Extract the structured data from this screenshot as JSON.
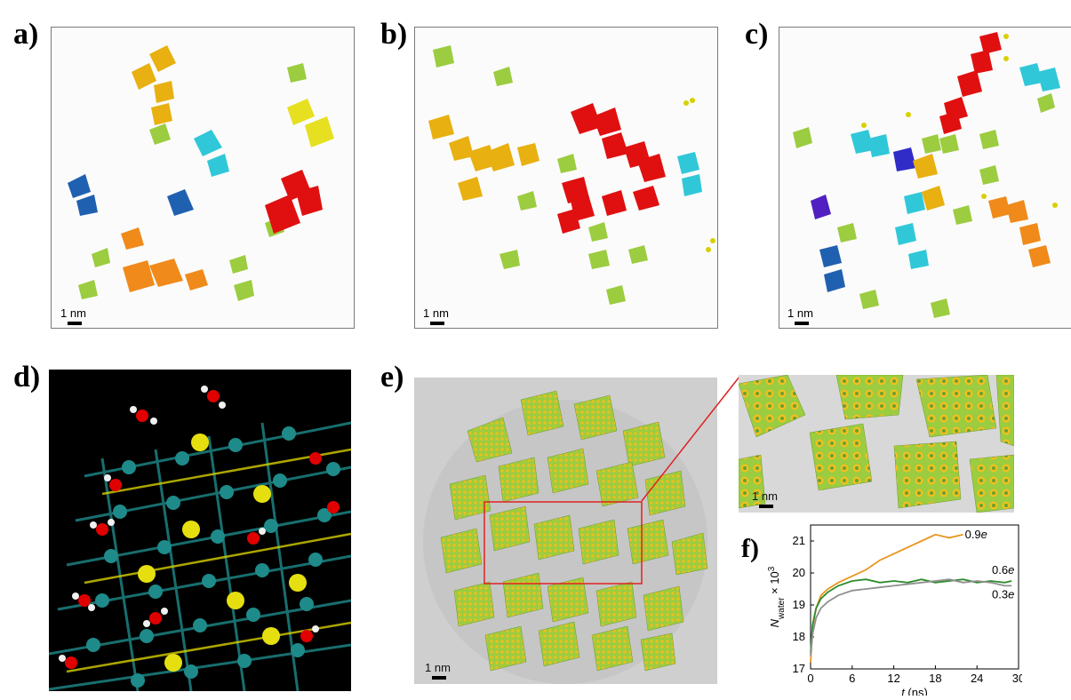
{
  "figure": {
    "panels": {
      "a": {
        "label": "a)",
        "scale_bar": "1 nm"
      },
      "b": {
        "label": "b)",
        "scale_bar": "1 nm"
      },
      "c": {
        "label": "c)",
        "scale_bar": "1 nm"
      },
      "d": {
        "label": "d)"
      },
      "e": {
        "label": "e)",
        "scale_bar_main": "1 nm",
        "scale_bar_zoom": "1 nm"
      },
      "f": {
        "label": "f)"
      }
    },
    "colors": {
      "red": "#e01010",
      "orange": "#f08a1a",
      "gold": "#e8b010",
      "yellow": "#e6e020",
      "green": "#9ccc40",
      "cyan": "#30c8d8",
      "blue": "#2060b0",
      "purple": "#5020c0",
      "teal": "#1f8a8a",
      "sulfur": "#d8d000",
      "oxygen": "#e00000",
      "hydrogen": "#f0f0f0"
    }
  },
  "chart_data": {
    "type": "line",
    "xlabel": "t (ns)",
    "ylabel": "N_water × 10^3",
    "xlim": [
      0,
      30
    ],
    "ylim": [
      17,
      21.5
    ],
    "xticks": [
      "0",
      "6",
      "12",
      "18",
      "24",
      "30"
    ],
    "yticks": [
      "17",
      "18",
      "19",
      "20",
      "21"
    ],
    "series": [
      {
        "name": "0.9e",
        "color": "#e8961e",
        "x": [
          0,
          0.3,
          0.8,
          1.5,
          2.5,
          4,
          6,
          8,
          10,
          12,
          14,
          16,
          18,
          20,
          22
        ],
        "y": [
          17.2,
          18.3,
          18.9,
          19.3,
          19.5,
          19.7,
          19.9,
          20.1,
          20.4,
          20.6,
          20.8,
          21.0,
          21.2,
          21.1,
          21.2
        ]
      },
      {
        "name": "0.6e",
        "color": "#2e8b2e",
        "x": [
          0,
          0.3,
          0.8,
          1.5,
          2.5,
          4,
          6,
          8,
          10,
          12,
          14,
          16,
          18,
          20,
          22,
          24,
          26,
          28,
          29
        ],
        "y": [
          17.5,
          18.4,
          18.9,
          19.2,
          19.4,
          19.6,
          19.75,
          19.8,
          19.7,
          19.75,
          19.7,
          19.8,
          19.7,
          19.75,
          19.8,
          19.7,
          19.75,
          19.7,
          19.75
        ]
      },
      {
        "name": "0.3e",
        "color": "#909090",
        "x": [
          0,
          0.3,
          0.8,
          1.5,
          2.5,
          4,
          6,
          8,
          10,
          12,
          14,
          16,
          18,
          20,
          22,
          24,
          26,
          28,
          29
        ],
        "y": [
          17.4,
          18.1,
          18.6,
          18.9,
          19.1,
          19.3,
          19.45,
          19.5,
          19.55,
          19.6,
          19.65,
          19.7,
          19.75,
          19.8,
          19.7,
          19.75,
          19.7,
          19.6,
          19.6
        ]
      }
    ]
  }
}
